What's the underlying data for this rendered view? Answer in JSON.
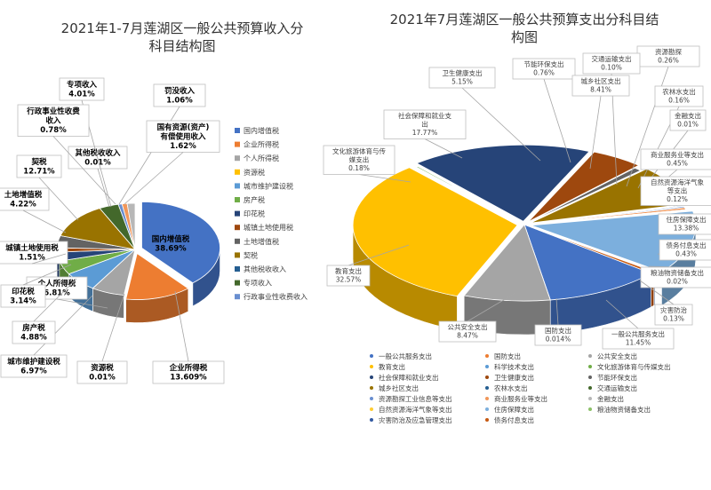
{
  "chart_data": [
    {
      "type": "pie",
      "title": "2021年1-7月莲湖区一般公共预算收入分科目结构图",
      "title_line1": "2021年1-7月莲湖区一般公共预算收入分",
      "title_line2": "科目结构图",
      "legend_position": "right",
      "slices": [
        {
          "name": "国内增值税",
          "label": "国内增值税",
          "value_label": "38.69%",
          "value": 38.69,
          "color": "#4472C4"
        },
        {
          "name": "企业所得税",
          "label": "企业所得税",
          "value_label": "13.609%",
          "value": 13.609,
          "color": "#ED7D31"
        },
        {
          "name": "个人所得税",
          "label": "个人所得税",
          "value_label": "6.81%",
          "value": 6.81,
          "color": "#A5A5A5"
        },
        {
          "name": "资源税",
          "label": "资源税",
          "value_label": "0.01%",
          "value": 0.01,
          "color": "#FFC000"
        },
        {
          "name": "城市维护建设税",
          "label": "城市维护建设税",
          "value_label": "6.97%",
          "value": 6.97,
          "color": "#5B9BD5"
        },
        {
          "name": "房产税",
          "label": "房产税",
          "value_label": "4.88%",
          "value": 4.88,
          "color": "#70AD47"
        },
        {
          "name": "印花税",
          "label": "印花税",
          "value_label": "3.14%",
          "value": 3.14,
          "color": "#264478"
        },
        {
          "name": "城镇土地使用税",
          "label": "城镇土地使用税",
          "value_label": "1.51%",
          "value": 1.51,
          "color": "#9E480E"
        },
        {
          "name": "土地增值税",
          "label": "土地增值税",
          "value_label": "4.22%",
          "value": 4.22,
          "color": "#636363"
        },
        {
          "name": "契税",
          "label": "契税",
          "value_label": "12.71%",
          "value": 12.71,
          "color": "#997300"
        },
        {
          "name": "其他税收收入",
          "label": "其他税收收入",
          "value_label": "0.01%",
          "value": 0.01,
          "color": "#255E91"
        },
        {
          "name": "专项收入",
          "label": "专项收入",
          "value_label": "4.01%",
          "value": 4.01,
          "color": "#43682B"
        },
        {
          "name": "行政事业性收费收入",
          "label": "行政事业性收费收入",
          "value_label": "0.78%",
          "value": 0.78,
          "color": "#698ED0"
        },
        {
          "name": "罚没收入",
          "label": "罚没收入",
          "value_label": "1.06%",
          "value": 1.06,
          "color": "#F1975A"
        },
        {
          "name": "国有资源(资产)有偿使用收入",
          "label": "国有资源(资产)有偿使用收入",
          "value_label": "1.62%",
          "value": 1.62,
          "color": "#B7B7B7"
        }
      ],
      "legend": [
        "国内增值税",
        "企业所得税",
        "个人所得税",
        "资源税",
        "城市维护建设税",
        "房产税",
        "印花税",
        "城镇土地使用税",
        "土地增值税",
        "契税",
        "其他税收收入",
        "专项收入",
        "行政事业性收费收入"
      ]
    },
    {
      "type": "pie",
      "title": "2021年7月莲湖区一般公共预算支出分科目结构图",
      "title_line1": "2021年7月莲湖区一般公共预算支出分科目结",
      "title_line2": "构图",
      "legend_position": "bottom",
      "slices": [
        {
          "name": "一般公共服务支出",
          "value_label": "11.45%",
          "value": 11.45,
          "color": "#4472C4"
        },
        {
          "name": "国防支出",
          "value_label": "0.014%",
          "value": 0.014,
          "color": "#ED7D31"
        },
        {
          "name": "公共安全支出",
          "value_label": "8.47%",
          "value": 8.47,
          "color": "#A5A5A5"
        },
        {
          "name": "教育支出",
          "value_label": "32.57%",
          "value": 32.57,
          "color": "#FFC000"
        },
        {
          "name": "科学技术支出",
          "value": 0,
          "color": "#5B9BD5"
        },
        {
          "name": "文化旅游体育与传媒支出",
          "value_label": "0.18%",
          "value": 0.18,
          "color": "#70AD47"
        },
        {
          "name": "社会保障和就业支出",
          "value_label": "17.77%",
          "value": 17.77,
          "color": "#264478"
        },
        {
          "name": "卫生健康支出",
          "value_label": "5.15%",
          "value": 5.15,
          "color": "#9E480E"
        },
        {
          "name": "节能环保支出",
          "value_label": "0.76%",
          "value": 0.76,
          "color": "#636363"
        },
        {
          "name": "城乡社区支出",
          "value_label": "8.41%",
          "value": 8.41,
          "color": "#997300"
        },
        {
          "name": "农林水支出",
          "value_label": "0.16%",
          "value": 0.16,
          "color": "#255E91"
        },
        {
          "name": "交通运输支出",
          "value_label": "0.10%",
          "value": 0.1,
          "color": "#43682B"
        },
        {
          "name": "资源勘探工业信息等支出",
          "value_label": "0.26%",
          "value": 0.26,
          "color": "#698ED0"
        },
        {
          "name": "商业服务业等支出",
          "value_label": "0.45%",
          "value": 0.45,
          "color": "#F1975A"
        },
        {
          "name": "金融支出",
          "value_label": "0.01%",
          "value": 0.01,
          "color": "#B7B7B7"
        },
        {
          "name": "自然资源海洋气象等支出",
          "value_label": "0.12%",
          "value": 0.12,
          "color": "#FFCD33"
        },
        {
          "name": "住房保障支出",
          "value_label": "13.38%",
          "value": 13.38,
          "color": "#7CAFDD"
        },
        {
          "name": "粮油物资储备支出",
          "value_label": "0.02%",
          "value": 0.02,
          "color": "#8CC168"
        },
        {
          "name": "灾害防治及应急管理支出",
          "value_label": "0.13%",
          "value": 0.13,
          "color": "#335AA1"
        },
        {
          "name": "债务付息支出",
          "value_label": "0.43%",
          "value": 0.43,
          "color": "#C65911"
        }
      ],
      "callouts": [
        {
          "name": "资源勘探",
          "value_label": "0.26%"
        },
        {
          "name": "农林水支出",
          "value_label": "0.16%"
        },
        {
          "name": "金融支出",
          "value_label": "0.01%"
        },
        {
          "name": "交通运输支出",
          "value_label": "0.10%"
        },
        {
          "name": "节能环保支出",
          "value_label": "0.76%"
        },
        {
          "name": "卫生健康支出",
          "value_label": "5.15%"
        },
        {
          "name": "城乡社区支出",
          "value_label": "8.41%"
        },
        {
          "name": "社会保障和就业支出",
          "value_label": "17.77%"
        },
        {
          "name": "文化旅游体育与传媒支出",
          "value_label": "0.18%"
        },
        {
          "name": "商业服务业等支出",
          "value_label": "0.45%"
        },
        {
          "name": "自然资源海洋气象等支出",
          "value_label": "0.12%"
        },
        {
          "name": "住房保障支出",
          "value_label": "13.38%"
        },
        {
          "name": "债务付息支出",
          "value_label": "0.43%"
        },
        {
          "name": "教育支出",
          "value_label": "32.57%"
        },
        {
          "name": "粮油物资储备支出",
          "value_label": "0.02%"
        },
        {
          "name": "灾害防治",
          "value_label": "0.13%"
        },
        {
          "name": "公共安全支出",
          "value_label": "8.47%"
        },
        {
          "name": "国防支出",
          "value_label": "0.014%"
        },
        {
          "name": "一般公共服务支出",
          "value_label": "11.45%"
        }
      ],
      "legend": [
        "一般公共服务支出",
        "国防支出",
        "公共安全支出",
        "教育支出",
        "科学技术支出",
        "文化旅游体育与传媒支出",
        "社会保障和就业支出",
        "卫生健康支出",
        "节能环保支出",
        "城乡社区支出",
        "农林水支出",
        "交通运输支出",
        "资源勘探工业信息等支出",
        "商业服务业等支出",
        "金融支出",
        "自然资源海洋气象等支出",
        "住房保障支出",
        "粮油物资储备支出",
        "灾害防治及应急管理支出",
        "债务付息支出"
      ]
    }
  ]
}
